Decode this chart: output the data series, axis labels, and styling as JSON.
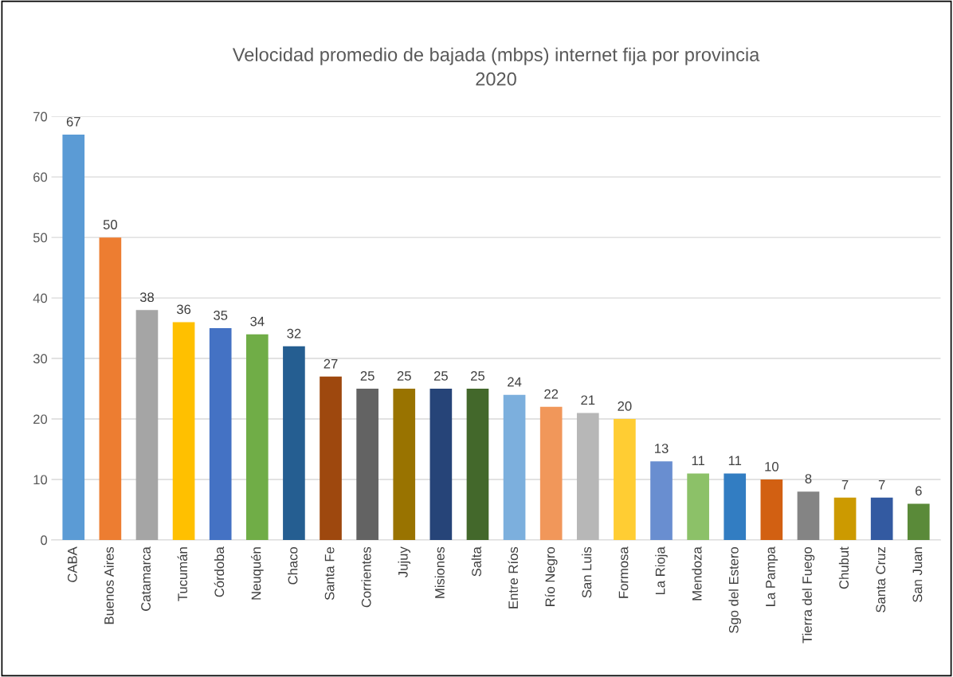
{
  "chart_data": {
    "type": "bar",
    "title": "Velocidad promedio de bajada (mbps) internet fija por provincia\n2020",
    "categories": [
      "CABA",
      "Buenos Aires",
      "Catamarca",
      "Tucumán",
      "Córdoba",
      "Neuquén",
      "Chaco",
      "Santa Fe",
      "Corrientes",
      "Jujuy",
      "Misiones",
      "Salta",
      "Entre Ríos",
      "Río Negro",
      "San Luis",
      "Formosa",
      "La Rioja",
      "Mendoza",
      "Sgo del Estero",
      "La Pampa",
      "Tierra del Fuego",
      "Chubut",
      "Santa Cruz",
      "San Juan"
    ],
    "values": [
      67,
      50,
      38,
      36,
      35,
      34,
      32,
      27,
      25,
      25,
      25,
      25,
      24,
      22,
      21,
      20,
      13,
      11,
      11,
      10,
      8,
      7,
      7,
      6
    ],
    "colors": [
      "#5b9bd5",
      "#ed7d31",
      "#a5a5a5",
      "#ffc000",
      "#4472c4",
      "#70ad47",
      "#255e91",
      "#9e480e",
      "#636363",
      "#997300",
      "#264478",
      "#43682b",
      "#7cafdd",
      "#f1975a",
      "#b7b7b7",
      "#ffcd33",
      "#698ed0",
      "#8cc168",
      "#327dc2",
      "#d26012",
      "#848484",
      "#cc9a00",
      "#335aa1",
      "#5a8a39"
    ],
    "ylim": [
      0,
      70
    ],
    "yticks": [
      0,
      10,
      20,
      30,
      40,
      50,
      60,
      70
    ],
    "grid": "y",
    "data_labels": true
  }
}
